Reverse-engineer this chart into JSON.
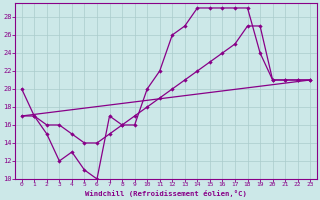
{
  "bg_color": "#cce8e8",
  "grid_color": "#aacccc",
  "line_color": "#880088",
  "xlabel": "Windchill (Refroidissement éolien,°C)",
  "xlim": [
    -0.5,
    23.5
  ],
  "ylim": [
    10,
    29.5
  ],
  "xticks": [
    0,
    1,
    2,
    3,
    4,
    5,
    6,
    7,
    8,
    9,
    10,
    11,
    12,
    13,
    14,
    15,
    16,
    17,
    18,
    19,
    20,
    21,
    22,
    23
  ],
  "yticks": [
    10,
    12,
    14,
    16,
    18,
    20,
    22,
    24,
    26,
    28
  ],
  "curve1_x": [
    0,
    1,
    2,
    3,
    4,
    5,
    6,
    7,
    8,
    9,
    10,
    11,
    12,
    13,
    14,
    15,
    16,
    17,
    18,
    19,
    20,
    21,
    22,
    23
  ],
  "curve1_y": [
    20,
    17,
    15,
    12,
    13,
    11,
    10,
    17,
    16,
    16,
    20,
    22,
    26,
    27,
    29,
    29,
    29,
    29,
    29,
    24,
    21,
    21,
    21,
    21
  ],
  "curve2_x": [
    0,
    1,
    2,
    3,
    4,
    5,
    6,
    7,
    8,
    9,
    10,
    11,
    12,
    13,
    14,
    15,
    16,
    17,
    18,
    19,
    20,
    21,
    22,
    23
  ],
  "curve2_y": [
    17,
    17,
    16,
    16,
    15,
    14,
    14,
    15,
    16,
    17,
    18,
    19,
    20,
    21,
    22,
    23,
    24,
    25,
    27,
    27,
    21,
    21,
    21,
    21
  ],
  "curve3_x": [
    0,
    23
  ],
  "curve3_y": [
    17,
    21
  ],
  "marker_x1": [
    0,
    1,
    2,
    3,
    4,
    5,
    6,
    7,
    8,
    9,
    10,
    11,
    12,
    13,
    14,
    15,
    16,
    17,
    18,
    19,
    20,
    21,
    22,
    23
  ],
  "marker_y1": [
    20,
    17,
    15,
    12,
    13,
    11,
    10,
    17,
    16,
    16,
    20,
    22,
    26,
    27,
    29,
    29,
    29,
    29,
    29,
    24,
    21,
    21,
    21,
    21
  ],
  "marker_x2": [
    0,
    1,
    2,
    3,
    4,
    5,
    6,
    7,
    8,
    9,
    10,
    11,
    12,
    13,
    14,
    15,
    16,
    17,
    18,
    19,
    20,
    21,
    22,
    23
  ],
  "marker_y2": [
    17,
    17,
    16,
    16,
    15,
    14,
    14,
    15,
    16,
    17,
    18,
    19,
    20,
    21,
    22,
    23,
    24,
    25,
    27,
    27,
    21,
    21,
    21,
    21
  ]
}
